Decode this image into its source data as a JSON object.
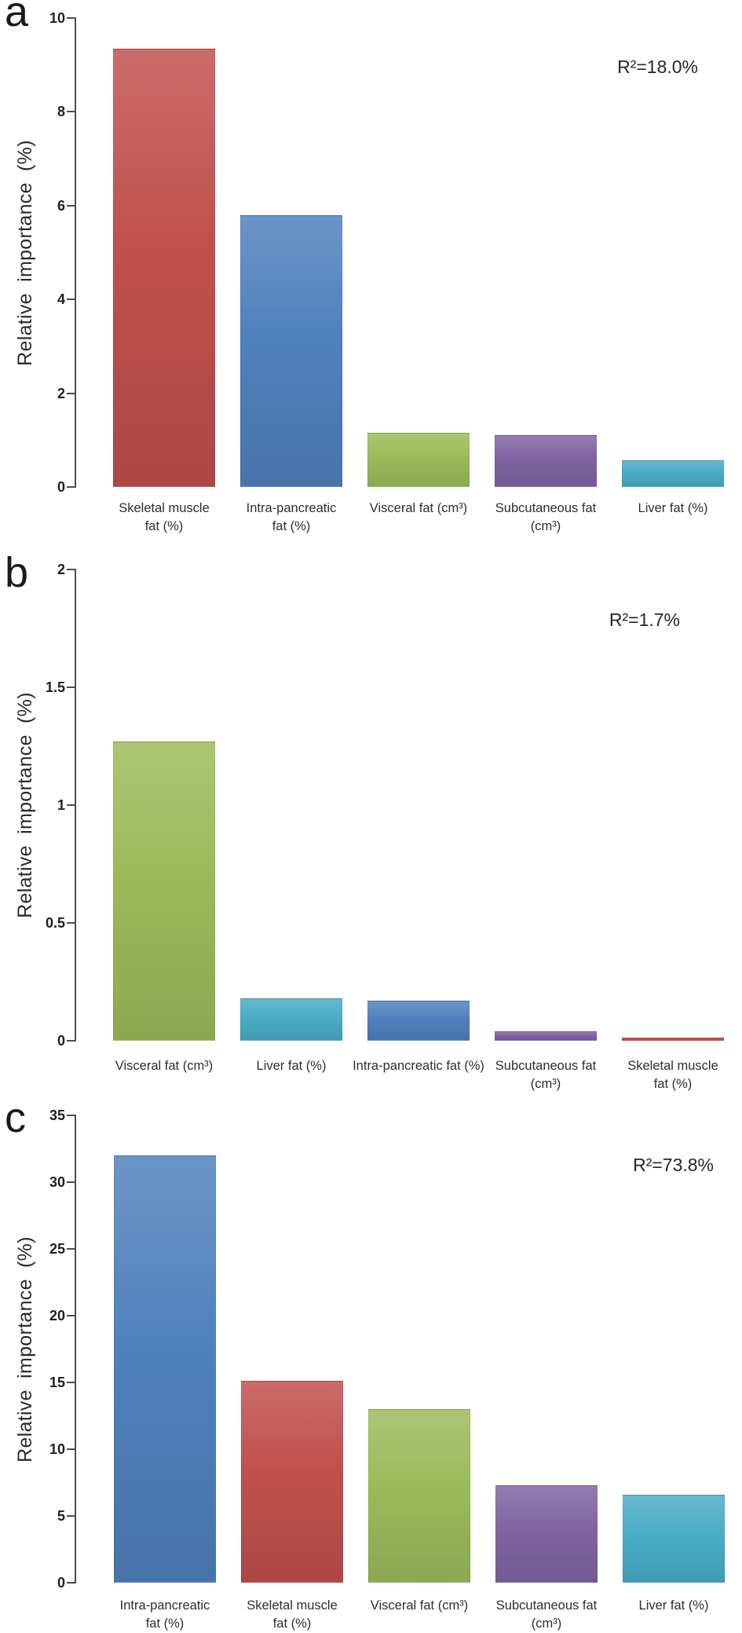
{
  "figure_title": "",
  "chart_data": [
    {
      "type": "bar",
      "panel_label": "a",
      "annotation": "R²=18.0%",
      "ylabel": "Relative importance (%)",
      "xlabel": "",
      "ylim": [
        0,
        10
      ],
      "ytick_labels": [
        "10",
        "8",
        "6",
        "4",
        "2",
        "0"
      ],
      "grid": false,
      "legend": "none",
      "categories": [
        "Skeletal muscle fat (%)",
        "Intra-pancreatic fat (%)",
        "Visceral fat (cm³)",
        "Subcutaneous fat (cm³)",
        "Liver fat (%)"
      ],
      "category_lines": [
        [
          "Skeletal muscle",
          "fat (%)"
        ],
        [
          "Intra-pancreatic",
          "fat (%)"
        ],
        [
          "Visceral fat (cm³)"
        ],
        [
          "Subcutaneous fat",
          "(cm³)"
        ],
        [
          "Liver fat (%)"
        ]
      ],
      "values": [
        9.35,
        5.8,
        1.15,
        1.1,
        0.57
      ],
      "bar_colors": [
        "#C0504D",
        "#4F81BD",
        "#9BBB59",
        "#8064A2",
        "#4BACC6"
      ]
    },
    {
      "type": "bar",
      "panel_label": "b",
      "annotation": "R²=1.7%",
      "ylabel": "Relative importance (%)",
      "xlabel": "",
      "ylim": [
        0,
        2
      ],
      "ytick_labels": [
        "2",
        "1.5",
        "1",
        "0.5",
        "0"
      ],
      "grid": false,
      "legend": "none",
      "categories": [
        "Visceral fat (cm³)",
        "Liver fat (%)",
        "Intra-pancreatic fat (%)",
        "Subcutaneous fat (cm³)",
        "Skeletal muscle fat (%)"
      ],
      "category_lines": [
        [
          "Visceral fat (cm³)"
        ],
        [
          "Liver fat (%)"
        ],
        [
          "Intra-pancreatic fat (%)"
        ],
        [
          "Subcutaneous fat",
          "(cm³)"
        ],
        [
          "Skeletal muscle",
          "fat (%)"
        ]
      ],
      "values": [
        1.27,
        0.18,
        0.17,
        0.04,
        0.015
      ],
      "bar_colors": [
        "#9BBB59",
        "#4BACC6",
        "#4F81BD",
        "#8064A2",
        "#C0504D"
      ]
    },
    {
      "type": "bar",
      "panel_label": "c",
      "annotation": "R²=73.8%",
      "ylabel": "Relative importance (%)",
      "xlabel": "",
      "ylim": [
        0,
        35
      ],
      "ytick_labels": [
        "35",
        "30",
        "25",
        "20",
        "15",
        "10",
        "5",
        "0"
      ],
      "grid": false,
      "legend": "none",
      "categories": [
        "Intra-pancreatic fat (%)",
        "Skeletal muscle fat (%)",
        "Visceral fat (cm³)",
        "Subcutaneous fat (cm³)",
        "Liver fat (%)"
      ],
      "category_lines": [
        [
          "Intra-pancreatic",
          "fat (%)"
        ],
        [
          "Skeletal muscle",
          "fat (%)"
        ],
        [
          "Visceral fat (cm³)"
        ],
        [
          "Subcutaneous fat",
          "(cm³)"
        ],
        [
          "Liver fat (%)"
        ]
      ],
      "values": [
        32.0,
        15.1,
        13.0,
        7.3,
        6.6
      ],
      "bar_colors": [
        "#4F81BD",
        "#C0504D",
        "#9BBB59",
        "#8064A2",
        "#4BACC6"
      ]
    }
  ]
}
